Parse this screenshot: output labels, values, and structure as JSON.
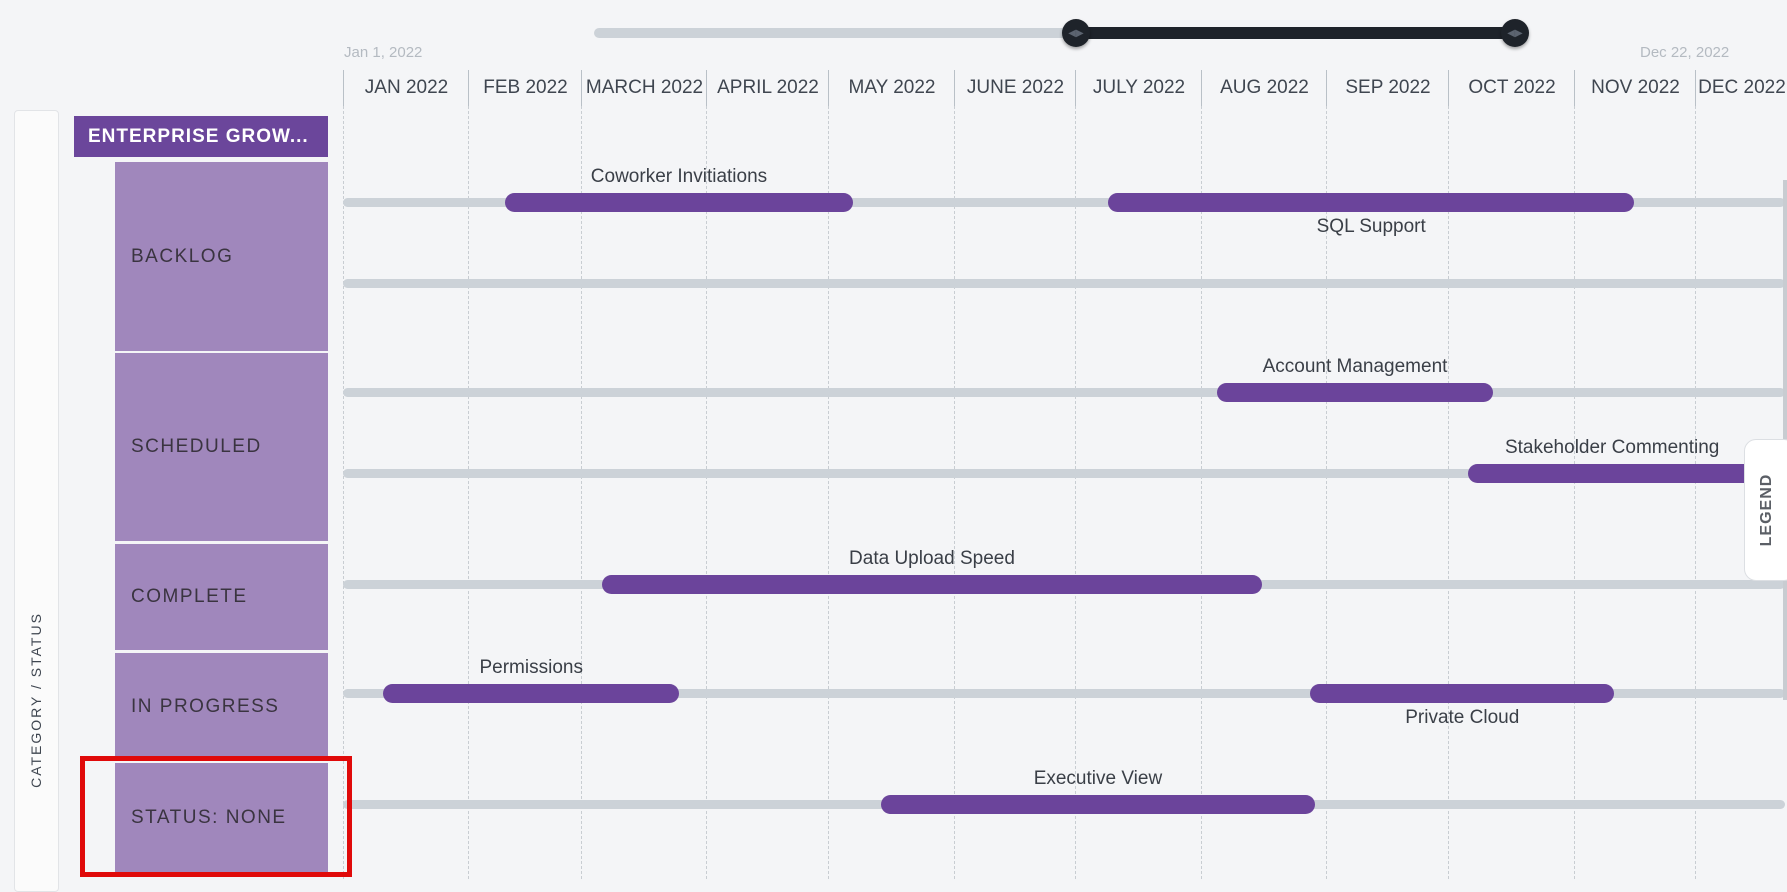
{
  "range_slider": {
    "start_label": "Jan 1, 2022",
    "end_label": "Dec 22, 2022",
    "handle_icon": "drag-arrows-icon"
  },
  "months": [
    "JAN 2022",
    "FEB 2022",
    "MARCH 2022",
    "APRIL 2022",
    "MAY 2022",
    "JUNE 2022",
    "JULY 2022",
    "AUG 2022",
    "SEP 2022",
    "OCT 2022",
    "NOV 2022",
    "DEC 2022"
  ],
  "side_label": "CATEGORY / STATUS",
  "category": "ENTERPRISE GROW...",
  "statuses": [
    "BACKLOG",
    "SCHEDULED",
    "COMPLETE",
    "IN PROGRESS",
    "STATUS: NONE"
  ],
  "legend_label": "LEGEND",
  "bar_color": "#6b449b",
  "highlight_color": "#e00a0a",
  "items": [
    {
      "name": "Coworker Invitiations",
      "status": "BACKLOG",
      "lane": 0,
      "start": "2022-02-10",
      "end": "2022-05-07",
      "label_pos": "above"
    },
    {
      "name": "SQL Support",
      "status": "BACKLOG",
      "lane": 0,
      "start": "2022-07-09",
      "end": "2022-11-16",
      "label_pos": "below"
    },
    {
      "name": "Account Management",
      "status": "SCHEDULED",
      "lane": 2,
      "start": "2022-08-05",
      "end": "2022-10-12",
      "label_pos": "above"
    },
    {
      "name": "Stakeholder Commenting",
      "status": "SCHEDULED",
      "lane": 3,
      "start": "2022-10-06",
      "end": "2022-12-31",
      "label_pos": "above"
    },
    {
      "name": "Data Upload Speed",
      "status": "COMPLETE",
      "lane": 4,
      "start": "2022-03-06",
      "end": "2022-08-16",
      "label_pos": "above"
    },
    {
      "name": "Permissions",
      "status": "IN PROGRESS",
      "lane": 5,
      "start": "2022-01-11",
      "end": "2022-03-25",
      "label_pos": "above"
    },
    {
      "name": "Private Cloud",
      "status": "IN PROGRESS",
      "lane": 5,
      "start": "2022-08-28",
      "end": "2022-11-11",
      "label_pos": "below"
    },
    {
      "name": "Executive View",
      "status": "STATUS: NONE",
      "lane": 6,
      "start": "2022-05-14",
      "end": "2022-08-29",
      "label_pos": "above"
    }
  ]
}
